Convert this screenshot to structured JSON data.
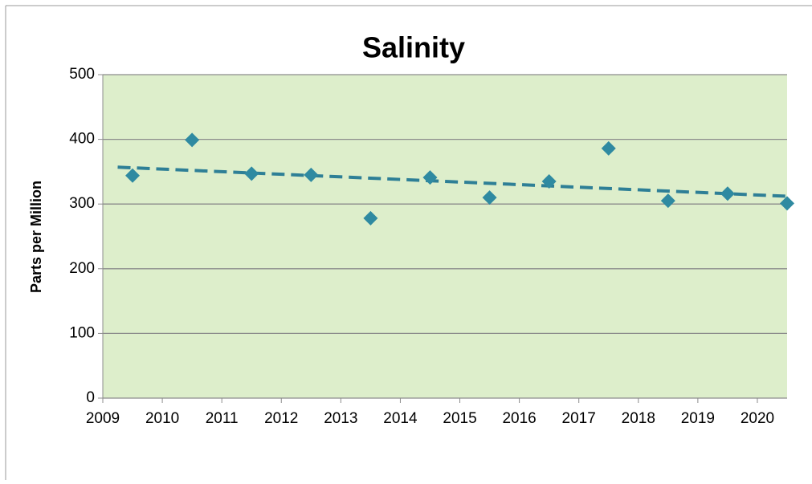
{
  "chart_data": {
    "type": "scatter",
    "title": "Salinity",
    "y_label": "Parts per Million",
    "series": [
      {
        "name": "Salinity",
        "color": "#2f8aa1",
        "x": [
          2009.5,
          2010.5,
          2011.5,
          2012.5,
          2013.5,
          2014.5,
          2015.5,
          2016.5,
          2017.5,
          2018.5,
          2019.5,
          2020.5
        ],
        "values": [
          344,
          399,
          347,
          345,
          278,
          341,
          310,
          335,
          386,
          305,
          316,
          301
        ]
      }
    ],
    "trendline": {
      "color": "#2e7f96",
      "x": [
        2009.25,
        2020.5
      ],
      "values": [
        357,
        312
      ]
    },
    "xlim": [
      2009,
      2020.5
    ],
    "xticks": [
      2009,
      2010,
      2011,
      2012,
      2013,
      2014,
      2015,
      2016,
      2017,
      2018,
      2019,
      2020
    ],
    "ylim": [
      0,
      500
    ],
    "yticks": [
      0,
      100,
      200,
      300,
      400,
      500
    ],
    "grid": true,
    "plot_background": "#ddeecb"
  }
}
